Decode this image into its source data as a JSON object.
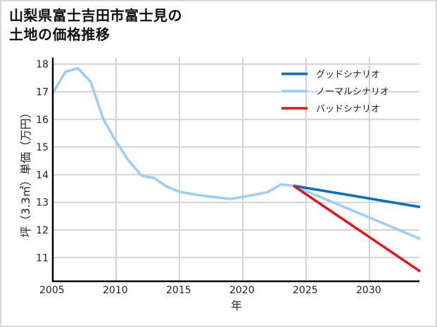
{
  "title": {
    "line1": "山梨県富士吉田市富士見の",
    "line2": "土地の価格推移"
  },
  "chart_data": {
    "type": "line",
    "title": "山梨県富士吉田市富士見の土地の価格推移",
    "xlabel": "年",
    "ylabel": "坪（3.3㎡）単価（万円）",
    "xlim": [
      2005,
      2034
    ],
    "ylim": [
      10.1,
      18.2
    ],
    "xticks": [
      2005,
      2010,
      2015,
      2020,
      2025,
      2030
    ],
    "yticks": [
      11,
      12,
      13,
      14,
      15,
      16,
      17,
      18
    ],
    "grid": true,
    "legend_position": "upper right",
    "series": [
      {
        "name": "グッドシナリオ",
        "color": "#0070c8",
        "x": [
          2024,
          2034
        ],
        "values": [
          13.6,
          12.83
        ]
      },
      {
        "name": "ノーマルシナリオ",
        "color": "#99ccff",
        "x": [
          2005,
          2006,
          2007,
          2008,
          2009,
          2010,
          2011,
          2012,
          2013,
          2014,
          2015,
          2016,
          2017,
          2018,
          2019,
          2020,
          2021,
          2022,
          2023,
          2024,
          2034
        ],
        "values": [
          16.95,
          17.72,
          17.85,
          17.35,
          16.0,
          15.2,
          14.5,
          13.97,
          13.88,
          13.57,
          13.38,
          13.3,
          13.23,
          13.18,
          13.12,
          13.2,
          13.28,
          13.38,
          13.65,
          13.6,
          11.68
        ]
      },
      {
        "name": "バッドシナリオ",
        "color": "#ee1111",
        "x": [
          2024,
          2034
        ],
        "values": [
          13.6,
          10.5
        ]
      }
    ]
  }
}
